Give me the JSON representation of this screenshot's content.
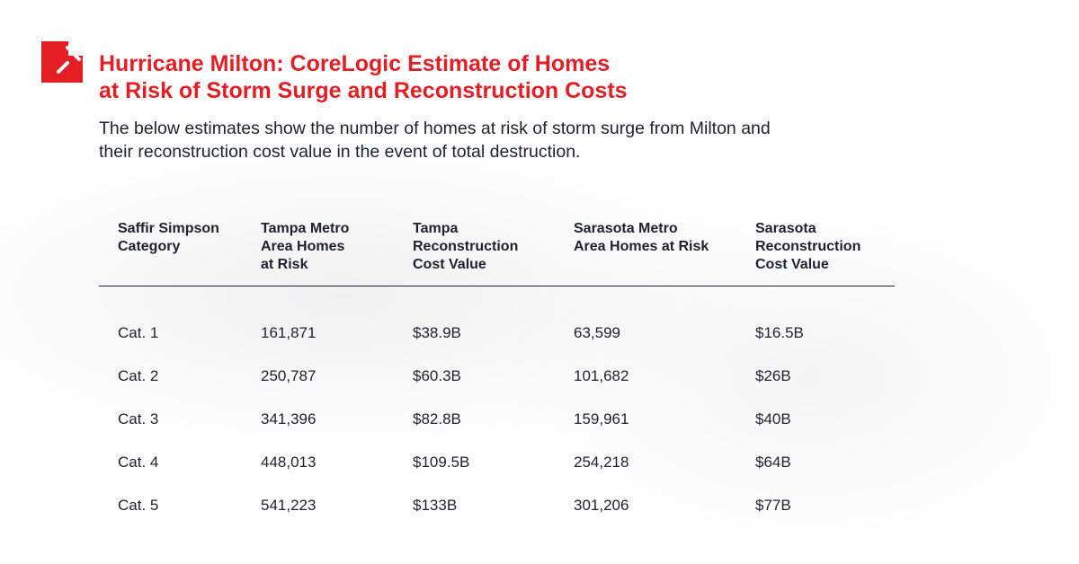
{
  "brand": {
    "color": "#e31e24",
    "logo_icon": "corelogic-logo-icon"
  },
  "title_line1": "Hurricane Milton: CoreLogic Estimate of Homes",
  "title_line2": "at Risk of Storm Surge and Reconstruction Costs",
  "subtitle_line1": "The below estimates show the number of homes at risk of storm surge from Milton and",
  "subtitle_line2": "their reconstruction cost value in the event of total destruction.",
  "table": {
    "headers": [
      [
        "Saffir Simpson",
        "Category"
      ],
      [
        "Tampa Metro",
        "Area Homes",
        "at Risk"
      ],
      [
        "Tampa",
        "Reconstruction",
        "Cost Value"
      ],
      [
        "Sarasota Metro",
        "Area Homes at Risk"
      ],
      [
        "Sarasota",
        "Reconstruction",
        "Cost Value"
      ]
    ],
    "rows": [
      [
        "Cat. 1",
        "161,871",
        "$38.9B",
        "63,599",
        "$16.5B"
      ],
      [
        "Cat. 2",
        "250,787",
        "$60.3B",
        "101,682",
        "$26B"
      ],
      [
        "Cat. 3",
        "341,396",
        "$82.8B",
        "159,961",
        "$40B"
      ],
      [
        "Cat. 4",
        "448,013",
        "$109.5B",
        "254,218",
        "$64B"
      ],
      [
        "Cat. 5",
        "541,223",
        "$133B",
        "301,206",
        "$77B"
      ]
    ]
  }
}
